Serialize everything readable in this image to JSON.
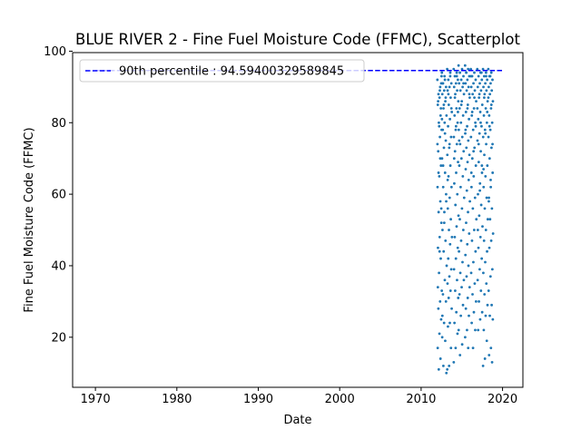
{
  "chart_data": {
    "type": "scatter",
    "title": "BLUE RIVER 2 - Fine Fuel Moisture Code (FFMC), Scatterplot",
    "xlabel": "Date",
    "ylabel": "Fine Fuel Moisture Code (FFMC)",
    "xlim": [
      1967.2,
      2022.5
    ],
    "ylim": [
      6.0,
      99.6
    ],
    "x_ticks": [
      1970,
      1980,
      1990,
      2000,
      2010,
      2020
    ],
    "y_ticks": [
      20,
      40,
      60,
      80,
      100
    ],
    "grid": false,
    "legend": {
      "placement": "top-left",
      "entries": [
        {
          "label": "90th percentile : 94.59400329589845",
          "style": "dashed-line"
        }
      ]
    },
    "reference_line": {
      "name": "90th percentile : 94.59400329589845",
      "value": 94.59400329589845,
      "x_range": [
        1970,
        2020
      ],
      "style": "dashed",
      "color": "#0000ff"
    },
    "point_color": "#1f77b4",
    "series": [
      {
        "seasons": [
          {
            "year_start": 2012.0,
            "year_end": 2012.55,
            "y_values": [
              92,
              90,
              88,
              91,
              87,
              85,
              82,
              80,
              78,
              76,
              72,
              68,
              65,
              62,
              58,
              55,
              52,
              48,
              45,
              42,
              38,
              33,
              30,
              28,
              25,
              21,
              17,
              14,
              11,
              93,
              89,
              86,
              84,
              79,
              74,
              70,
              66,
              56,
              44,
              34
            ]
          },
          {
            "year_start": 2012.55,
            "year_end": 2013.15,
            "y_values": [
              94,
              92,
              91,
              90,
              89,
              88,
              86,
              84,
              82,
              80,
              78,
              75,
              73,
              70,
              66,
              62,
              58,
              55,
              50,
              47,
              44,
              40,
              36,
              32,
              30,
              24,
              20,
              19,
              12,
              10,
              93,
              91,
              87,
              85,
              81,
              77,
              68,
              60,
              52,
              26
            ]
          },
          {
            "year_start": 2013.2,
            "year_end": 2013.8,
            "y_values": [
              95,
              93,
              92,
              91,
              90,
              89,
              87,
              85,
              83,
              81,
              79,
              76,
              73,
              71,
              68,
              65,
              62,
              59,
              56,
              53,
              50,
              48,
              46,
              42,
              39,
              37,
              35,
              33,
              31,
              28,
              24,
              23,
              17,
              12,
              11,
              94,
              88,
              84,
              74,
              64
            ]
          },
          {
            "year_start": 2014.0,
            "year_end": 2014.6,
            "y_values": [
              95,
              94,
              93,
              92,
              91,
              90,
              89,
              88,
              86,
              84,
              82,
              80,
              78,
              76,
              74,
              72,
              69,
              66,
              63,
              60,
              57,
              54,
              51,
              48,
              45,
              42,
              39,
              36,
              33,
              31,
              27,
              24,
              21,
              17,
              13,
              93,
              87,
              83,
              79,
              70
            ]
          },
          {
            "year_start": 2014.6,
            "year_end": 2015.3,
            "y_values": [
              96,
              95,
              94,
              93,
              92,
              91,
              90,
              89,
              88,
              86,
              84,
              82,
              80,
              78,
              76,
              74,
              72,
              70,
              68,
              65,
              62,
              59,
              56,
              53,
              50,
              47,
              44,
              41,
              38,
              36,
              34,
              32,
              29,
              26,
              22,
              18,
              15,
              91,
              85,
              75
            ]
          },
          {
            "year_start": 2015.4,
            "year_end": 2016.0,
            "y_values": [
              96,
              95,
              94,
              93,
              92,
              91,
              90,
              89,
              87,
              85,
              83,
              81,
              79,
              77,
              75,
              73,
              71,
              69,
              67,
              64,
              61,
              58,
              55,
              52,
              49,
              46,
              43,
              40,
              37,
              34,
              31,
              28,
              26,
              22,
              20,
              17,
              94,
              88,
              84,
              78
            ]
          },
          {
            "year_start": 2016.1,
            "year_end": 2016.8,
            "y_values": [
              95,
              94,
              93,
              92,
              91,
              90,
              89,
              88,
              86,
              84,
              82,
              80,
              78,
              76,
              73,
              70,
              68,
              65,
              62,
              59,
              56,
              53,
              50,
              47,
              44,
              41,
              38,
              35,
              32,
              30,
              27,
              24,
              22,
              17,
              93,
              87,
              83,
              79,
              72,
              66
            ]
          },
          {
            "year_start": 2016.9,
            "year_end": 2017.55,
            "y_values": [
              95,
              94,
              93,
              92,
              91,
              90,
              89,
              87,
              85,
              83,
              81,
              79,
              77,
              75,
              72,
              69,
              66,
              63,
              60,
              57,
              54,
              51,
              48,
              45,
              42,
              39,
              36,
              33,
              30,
              27,
              25,
              22,
              94,
              88,
              84,
              80,
              74,
              68,
              61,
              50
            ]
          },
          {
            "year_start": 2017.6,
            "year_end": 2018.2,
            "y_values": [
              95,
              94,
              93,
              92,
              91,
              90,
              89,
              88,
              86,
              84,
              82,
              80,
              78,
              76,
              74,
              71,
              68,
              65,
              62,
              59,
              56,
              53,
              50,
              47,
              44,
              41,
              38,
              35,
              32,
              29,
              26,
              22,
              19,
              14,
              12,
              93,
              87,
              83,
              77,
              67
            ]
          },
          {
            "year_start": 2018.25,
            "year_end": 2018.85,
            "y_values": [
              95,
              94,
              93,
              92,
              91,
              90,
              89,
              88,
              86,
              84,
              82,
              80,
              78,
              76,
              73,
              70,
              66,
              62,
              59,
              56,
              53,
              49,
              47,
              45,
              39,
              37,
              33,
              29,
              26,
              25,
              17,
              15,
              13,
              93,
              87,
              85,
              79,
              74,
              64,
              58
            ]
          }
        ]
      }
    ]
  }
}
